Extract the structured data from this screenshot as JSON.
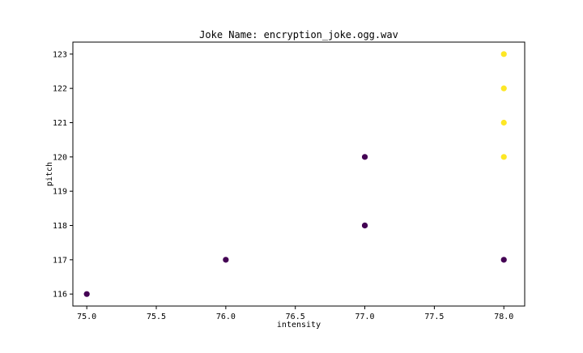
{
  "chart_data": {
    "type": "scatter",
    "title": "Joke Name: encryption_joke.ogg.wav",
    "xlabel": "intensity",
    "ylabel": "pitch",
    "xlim": [
      74.9,
      78.15
    ],
    "ylim": [
      115.65,
      123.35
    ],
    "xticks": [
      "75.0",
      "75.5",
      "76.0",
      "76.5",
      "77.0",
      "77.5",
      "78.0"
    ],
    "yticks": [
      "116",
      "117",
      "118",
      "119",
      "120",
      "121",
      "122",
      "123"
    ],
    "grid": false,
    "series": [
      {
        "color": "#440154",
        "points": [
          {
            "x": 75.0,
            "y": 116
          },
          {
            "x": 76.0,
            "y": 117
          },
          {
            "x": 77.0,
            "y": 118
          },
          {
            "x": 77.0,
            "y": 118
          },
          {
            "x": 77.0,
            "y": 120
          },
          {
            "x": 78.0,
            "y": 117
          }
        ]
      },
      {
        "color": "#fde725",
        "points": [
          {
            "x": 78.0,
            "y": 120
          },
          {
            "x": 78.0,
            "y": 121
          },
          {
            "x": 78.0,
            "y": 122
          },
          {
            "x": 78.0,
            "y": 123
          }
        ]
      }
    ]
  }
}
